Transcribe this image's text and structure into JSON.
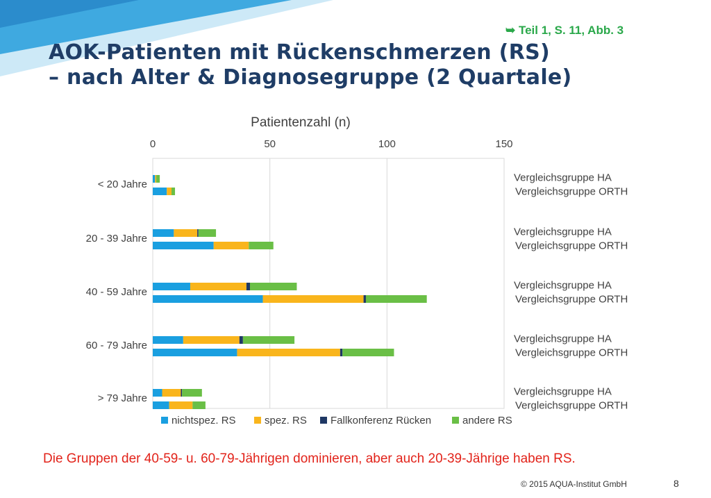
{
  "slide": {
    "reference": "➥ Teil  1, S. 11, Abb. 3",
    "title_line1": "AOK-Patienten mit Rückenschmerzen (RS)",
    "title_line2": "– nach Alter & Diagnosegruppe (2 Quartale)",
    "caption": "Die Gruppen der 40-59- u. 60-79-Jährigen dominieren, aber auch 20-39-Jährige haben RS.",
    "copyright": "© 2015 AQUA-Institut GmbH",
    "page_number": "8",
    "colors": {
      "title": "#1f3d66",
      "reference": "#2aa84a",
      "caption": "#e2231a",
      "corner_blue": "#3fa9e0",
      "corner_light": "#bfe3f5"
    }
  },
  "chart_data": {
    "type": "bar",
    "orientation": "horizontal",
    "stacked": true,
    "title": "Patientenzahl (n)",
    "xlim": [
      0,
      150
    ],
    "xticks": [
      0,
      50,
      100,
      150
    ],
    "x_axis_position": "top",
    "grid": true,
    "legend_position": "bottom",
    "groups": [
      "< 20 Jahre",
      "20 - 39 Jahre",
      "40 - 59 Jahre",
      "60 - 79 Jahre",
      "> 79 Jahre"
    ],
    "bar_labels": [
      "Vergleichsgruppe HA",
      "Vergleichsgruppe ORTH"
    ],
    "series": [
      {
        "name": "nichtspez. RS",
        "color": "#1a9fe0",
        "values": [
          [
            1,
            6
          ],
          [
            9,
            26
          ],
          [
            16,
            47
          ],
          [
            13,
            36
          ],
          [
            4,
            7
          ]
        ]
      },
      {
        "name": "spez. RS",
        "color": "#f9b51c",
        "values": [
          [
            0.5,
            2
          ],
          [
            10,
            15
          ],
          [
            24,
            43
          ],
          [
            24,
            44
          ],
          [
            8,
            10
          ]
        ]
      },
      {
        "name": "Fallkonferenz Rücken",
        "color": "#1f3864",
        "values": [
          [
            0,
            0
          ],
          [
            0.5,
            0
          ],
          [
            1.5,
            1
          ],
          [
            1.5,
            1
          ],
          [
            0.5,
            0
          ]
        ]
      },
      {
        "name": "andere RS",
        "color": "#6abf46",
        "values": [
          [
            1.5,
            1.5
          ],
          [
            7.5,
            10.5
          ],
          [
            20,
            26
          ],
          [
            22,
            22
          ],
          [
            8.5,
            5.5
          ]
        ]
      }
    ]
  }
}
